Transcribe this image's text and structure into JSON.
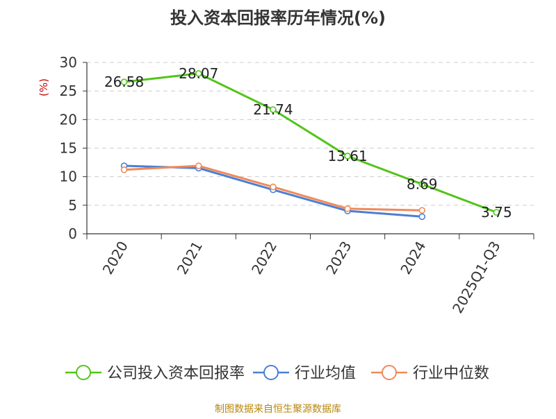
{
  "chart_data": {
    "type": "line",
    "title": "投入资本回报率历年情况(%)",
    "ylabel": "(%)",
    "xlabel": "",
    "categories": [
      "2020",
      "2021",
      "2022",
      "2023",
      "2024",
      "2025Q1-Q3"
    ],
    "ylim": [
      0,
      30
    ],
    "yticks": [
      0,
      5,
      10,
      15,
      20,
      25,
      30
    ],
    "grid": true,
    "legend_position": "bottom",
    "series": [
      {
        "name": "公司投入资本回报率",
        "color": "#52c41a",
        "values": [
          26.58,
          28.07,
          21.74,
          13.61,
          8.69,
          3.75
        ],
        "data_labels": [
          "26.58",
          "28.07",
          "21.74",
          "13.61",
          "8.69",
          "3.75"
        ]
      },
      {
        "name": "行业均值",
        "color": "#4a7fd4",
        "values": [
          11.9,
          11.5,
          7.7,
          4.0,
          3.0,
          null
        ]
      },
      {
        "name": "行业中位数",
        "color": "#f0895a",
        "values": [
          11.2,
          11.9,
          8.2,
          4.4,
          4.1,
          null
        ]
      }
    ],
    "source_note": "制图数据来自恒生聚源数据库"
  },
  "colors": {
    "title": "#333333",
    "axis": "#333333",
    "grid": "#cccccc",
    "ylabel": "#cc0000",
    "source": "#b8860b"
  }
}
